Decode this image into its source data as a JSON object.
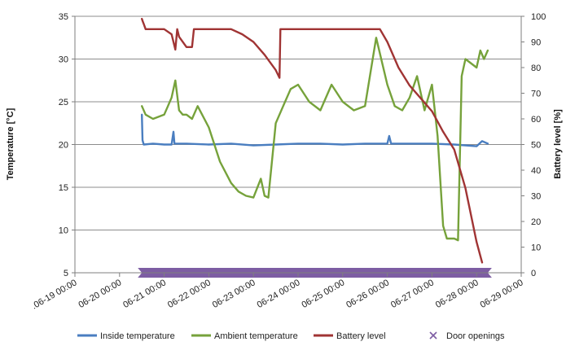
{
  "chart_data": {
    "type": "line",
    "title": "",
    "ylabel_left": "Temperature [°C]",
    "ylabel_right": "Battery level [%]",
    "ylim_left": [
      5,
      35
    ],
    "ylim_right": [
      0,
      100
    ],
    "yticks_left": [
      "5",
      "10",
      "15",
      "20",
      "25",
      "30",
      "35"
    ],
    "yticks_right": [
      "0",
      "10",
      "20",
      "30",
      "40",
      "50",
      "60",
      "70",
      "80",
      "90",
      "100"
    ],
    "x_domain": [
      "06-19 00:00",
      "06-29 00:00"
    ],
    "xticks": [
      ".06-19 00:00",
      "06-20 00:00",
      "06-21 00:00",
      "06-22 00:00",
      "06-23 00:00",
      "06-24 00:00",
      "06-25 00:00",
      "06-26 00:00",
      "06-27 00:00",
      "06-28 00:00",
      "06-29 00:00"
    ],
    "grid": "horizontal",
    "legend_position": "bottom",
    "colors": {
      "inside": "#4a7ec0",
      "ambient": "#76a23b",
      "battery": "#a03434",
      "doors": "#7d5da3"
    },
    "series": [
      {
        "name": "Inside temperature",
        "axis": "left",
        "color": "#4a7ec0",
        "x": [
          "06-20 12:00",
          "06-20 12:20",
          "06-20 13:00",
          "06-20 18:00",
          "06-21 00:00",
          "06-21 04:00",
          "06-21 05:00",
          "06-21 05:30",
          "06-21 12:00",
          "06-22 00:00",
          "06-22 12:00",
          "06-23 00:00",
          "06-23 12:00",
          "06-24 00:00",
          "06-24 12:00",
          "06-25 00:00",
          "06-25 12:00",
          "06-26 00:00",
          "06-26 01:00",
          "06-26 02:00",
          "06-26 12:00",
          "06-27 00:00",
          "06-27 12:00",
          "06-28 00:00",
          "06-28 03:00",
          "06-28 06:00"
        ],
        "values": [
          23.5,
          20.5,
          20.0,
          20.1,
          20.0,
          20.0,
          21.5,
          20.1,
          20.1,
          20.0,
          20.1,
          19.9,
          20.0,
          20.1,
          20.1,
          20.0,
          20.1,
          20.1,
          21.0,
          20.1,
          20.1,
          20.1,
          20.0,
          19.8,
          20.4,
          20.1
        ]
      },
      {
        "name": "Ambient temperature",
        "axis": "left",
        "color": "#76a23b",
        "x": [
          "06-20 12:00",
          "06-20 14:00",
          "06-20 18:00",
          "06-21 00:00",
          "06-21 02:00",
          "06-21 04:00",
          "06-21 06:00",
          "06-21 08:00",
          "06-21 10:00",
          "06-21 12:00",
          "06-21 15:00",
          "06-21 18:00",
          "06-22 00:00",
          "06-22 06:00",
          "06-22 12:00",
          "06-22 16:00",
          "06-22 20:00",
          "06-23 00:00",
          "06-23 04:00",
          "06-23 06:00",
          "06-23 08:00",
          "06-23 12:00",
          "06-23 16:00",
          "06-23 20:00",
          "06-24 00:00",
          "06-24 06:00",
          "06-24 12:00",
          "06-24 18:00",
          "06-25 00:00",
          "06-25 06:00",
          "06-25 12:00",
          "06-25 18:00",
          "06-26 00:00",
          "06-26 04:00",
          "06-26 08:00",
          "06-26 12:00",
          "06-26 16:00",
          "06-26 20:00",
          "06-27 00:00",
          "06-27 03:00",
          "06-27 06:00",
          "06-27 08:00",
          "06-27 10:00",
          "06-27 12:00",
          "06-27 14:00",
          "06-27 16:00",
          "06-27 18:00",
          "06-28 00:00",
          "06-28 02:00",
          "06-28 04:00",
          "06-28 06:00"
        ],
        "values": [
          24.5,
          23.5,
          23.0,
          23.5,
          24.5,
          25.5,
          27.5,
          24.0,
          23.5,
          23.5,
          23.0,
          24.5,
          22.0,
          18.0,
          15.5,
          14.5,
          14.0,
          13.8,
          16.0,
          14.0,
          13.8,
          22.5,
          24.5,
          26.5,
          27.0,
          25.0,
          24.0,
          27.0,
          25.0,
          24.0,
          24.5,
          32.5,
          27.0,
          24.5,
          24.0,
          25.5,
          28.0,
          24.0,
          27.0,
          21.0,
          10.5,
          9.0,
          9.0,
          9.0,
          8.8,
          28.0,
          30.0,
          29.0,
          31.0,
          30.0,
          31.0
        ]
      },
      {
        "name": "Battery level",
        "axis": "right",
        "color": "#a03434",
        "x": [
          "06-20 12:00",
          "06-20 12:30",
          "06-20 13:00",
          "06-20 14:00",
          "06-21 00:00",
          "06-21 04:00",
          "06-21 06:00",
          "06-21 07:00",
          "06-21 08:00",
          "06-21 12:00",
          "06-21 15:00",
          "06-21 16:00",
          "06-22 00:00",
          "06-22 12:00",
          "06-22 18:00",
          "06-23 00:00",
          "06-23 06:00",
          "06-23 12:00",
          "06-23 14:00",
          "06-23 14:30",
          "06-24 00:00",
          "06-24 12:00",
          "06-25 00:00",
          "06-25 12:00",
          "06-25 20:00",
          "06-26 00:00",
          "06-26 06:00",
          "06-26 12:00",
          "06-26 18:00",
          "06-27 00:00",
          "06-27 06:00",
          "06-27 12:00",
          "06-27 18:00",
          "06-28 00:00",
          "06-28 03:00"
        ],
        "values": [
          99,
          98,
          97,
          95,
          95,
          93,
          87,
          95,
          92,
          88,
          88,
          95,
          95,
          95,
          93,
          90,
          85,
          79,
          76,
          95,
          95,
          95,
          95,
          95,
          95,
          90,
          80,
          73,
          68,
          63,
          55,
          48,
          33,
          12,
          4
        ]
      }
    ],
    "door_openings": {
      "name": "Door openings",
      "axis": "left",
      "color": "#7d5da3",
      "x_range": [
        "06-20 12:00",
        "06-28 06:00"
      ],
      "value": 5
    },
    "legend": [
      {
        "label": "Inside temperature",
        "kind": "line",
        "color": "#4a7ec0"
      },
      {
        "label": "Ambient temperature",
        "kind": "line",
        "color": "#76a23b"
      },
      {
        "label": "Battery level",
        "kind": "line",
        "color": "#a03434"
      },
      {
        "label": "Door openings",
        "kind": "cross",
        "color": "#7d5da3"
      }
    ]
  }
}
